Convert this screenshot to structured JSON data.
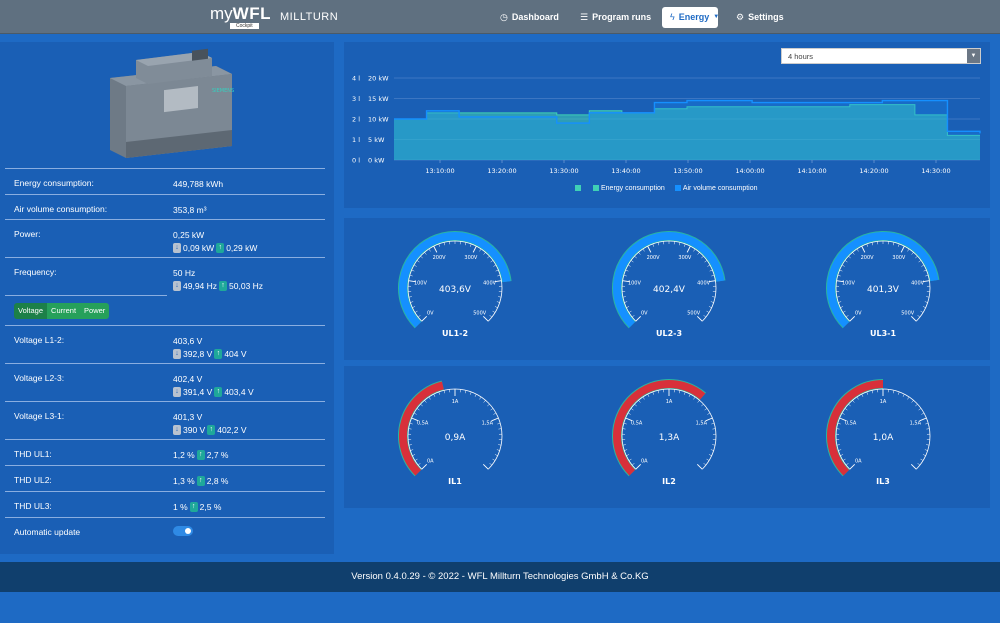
{
  "header": {
    "logo_prefix": "my",
    "logo_main": "WFL",
    "logo_sub": "Cockpit",
    "brand": "MILLTURN",
    "nav": [
      {
        "label": "Dashboard",
        "icon": "dashboard-icon"
      },
      {
        "label": "Program runs",
        "icon": "list-icon"
      },
      {
        "label": "Energy",
        "icon": "bolt-icon",
        "active": true
      },
      {
        "label": "Settings",
        "icon": "gear-icon"
      }
    ]
  },
  "metrics": {
    "energy_label": "Energy consumption:",
    "energy_value": "449,788 kWh",
    "air_label": "Air volume consumption:",
    "air_value": "353,8 m³",
    "power_label": "Power:",
    "power_value": "0,25 kW",
    "power_min": "0,09 kW",
    "power_max": "0,29 kW",
    "freq_label": "Frequency:",
    "freq_value": "50 Hz",
    "freq_min": "49,94 Hz",
    "freq_max": "50,03 Hz",
    "tabs": [
      "Voltage",
      "Current",
      "Power"
    ],
    "v12_label": "Voltage L1-2:",
    "v12_value": "403,6 V",
    "v12_min": "392,8 V",
    "v12_max": "404 V",
    "v23_label": "Voltage L2-3:",
    "v23_value": "402,4 V",
    "v23_min": "391,4 V",
    "v23_max": "403,4 V",
    "v31_label": "Voltage L3-1:",
    "v31_value": "401,3 V",
    "v31_min": "390 V",
    "v31_max": "402,2 V",
    "thd1_label": "THD UL1:",
    "thd1_value": "1,2 %",
    "thd1_max": "2,7 %",
    "thd2_label": "THD UL2:",
    "thd2_value": "1,3 %",
    "thd2_max": "2,8 %",
    "thd3_label": "THD UL3:",
    "thd3_value": "1 %",
    "thd3_max": "2,5 %",
    "auto_label": "Automatic update",
    "auto_on": true
  },
  "time_select": {
    "value": "4 hours"
  },
  "colors": {
    "energy": "#3fd0b5",
    "air": "#1590ff",
    "gauge_voltage": "#1590ff",
    "gauge_current": "#d8303a",
    "gauge_border": "#2ab5a0"
  },
  "chart_data": {
    "type": "area",
    "x": [
      "13:05",
      "13:10",
      "13:15",
      "13:20",
      "13:25",
      "13:30",
      "13:35",
      "13:40",
      "13:45",
      "13:50",
      "13:55",
      "14:00",
      "14:05",
      "14:10",
      "14:15",
      "14:20",
      "14:25",
      "14:30",
      "14:35"
    ],
    "x_ticks": [
      "13:10:00",
      "13:20:00",
      "13:30:00",
      "13:40:00",
      "13:50:00",
      "14:00:00",
      "14:10:00",
      "14:20:00",
      "14:30:00"
    ],
    "y_left_ticks": [
      "0 l",
      "1 l",
      "2 l",
      "3 l",
      "4 l"
    ],
    "y_right_ticks": [
      "0 kW",
      "5 kW",
      "10 kW",
      "15 kW",
      "20 kW"
    ],
    "series": [
      {
        "name": "Energy consumption",
        "axis": "kW",
        "values": [
          10,
          11.5,
          11.5,
          11.5,
          11.5,
          11,
          12,
          11.5,
          12.5,
          13,
          13,
          13,
          13,
          13,
          13.5,
          13.5,
          11,
          6,
          6
        ]
      },
      {
        "name": "Air volume consumption",
        "axis": "l",
        "values": [
          2.0,
          2.4,
          2.1,
          2.1,
          2.1,
          1.8,
          2.3,
          2.3,
          2.8,
          2.9,
          2.9,
          2.8,
          2.8,
          2.8,
          2.8,
          2.9,
          2.9,
          1.4,
          1.3
        ]
      }
    ],
    "ylim_kw": [
      0,
      20
    ],
    "ylim_l": [
      0,
      4
    ]
  },
  "voltage_gauges": [
    {
      "name": "UL1-2",
      "value": 403.6,
      "display": "403,6V",
      "ticks": [
        "0V",
        "100V",
        "200V",
        "300V",
        "400V",
        "500V"
      ],
      "max": 500
    },
    {
      "name": "UL2-3",
      "value": 402.4,
      "display": "402,4V",
      "ticks": [
        "0V",
        "100V",
        "200V",
        "300V",
        "400V",
        "500V"
      ],
      "max": 500
    },
    {
      "name": "UL3-1",
      "value": 401.3,
      "display": "401,3V",
      "ticks": [
        "0V",
        "100V",
        "200V",
        "300V",
        "400V",
        "500V"
      ],
      "max": 500
    }
  ],
  "current_gauges": [
    {
      "name": "IL1",
      "value": 0.9,
      "display": "0,9A",
      "ticks": [
        "0A",
        "0,5A",
        "1A",
        "1,5A"
      ],
      "max": 2
    },
    {
      "name": "IL2",
      "value": 1.3,
      "display": "1,3A",
      "ticks": [
        "0A",
        "0,5A",
        "1A",
        "1,5A"
      ],
      "max": 2
    },
    {
      "name": "IL3",
      "value": 1.0,
      "display": "1,0A",
      "ticks": [
        "0A",
        "0,5A",
        "1A",
        "1,5A"
      ],
      "max": 2
    }
  ],
  "footer": {
    "text": "Version 0.4.0.29 - © 2022 - WFL Millturn Technologies GmbH & Co.KG"
  }
}
